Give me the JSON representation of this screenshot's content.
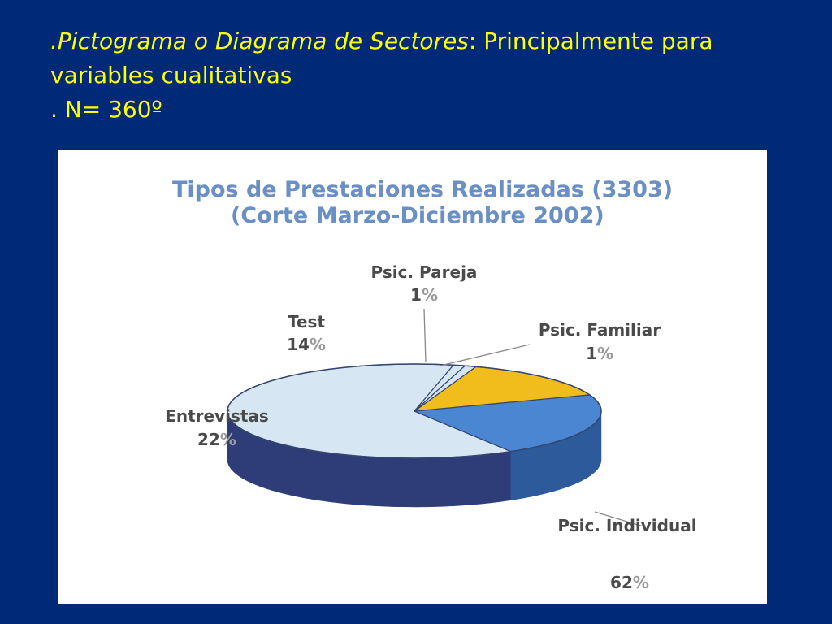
{
  "slide": {
    "heading_line1_italic": ".Pictograma o Diagrama de Sectores",
    "heading_line1_rest": ": Principalmente para",
    "heading_line2": "variables cualitativas",
    "heading_line3": ". N= 360º"
  },
  "colors": {
    "background": "#002a78",
    "heading_text": "#ffff00",
    "chart_panel": "#ffffff",
    "chart_title": "#6a8fc4",
    "label_text": "#4a4a4a"
  },
  "chart_data": {
    "type": "pie",
    "style": "3d",
    "title": "Tipos de Prestaciones Realizadas (3303)",
    "subtitle": "(Corte Marzo-Diciembre 2002)",
    "slices": [
      {
        "label": "Psic. Individual",
        "value": 62,
        "value_label": "62",
        "unit": "%",
        "color": "#d6e6f2",
        "side_color": "#2e3d78"
      },
      {
        "label": "Entrevistas",
        "value": 22,
        "value_label": "22",
        "unit": "%",
        "color": "#4a86d2",
        "side_color": "#2d5a9a"
      },
      {
        "label": "Test",
        "value": 14,
        "value_label": "14",
        "unit": "%",
        "color": "#f0bd1c",
        "side_color": "#a88410"
      },
      {
        "label": "Psic. Pareja",
        "value": 1,
        "value_label": "1",
        "unit": "%",
        "color": "#d6e6f2",
        "side_color": "#2e3d78"
      },
      {
        "label": "Psic. Familiar",
        "value": 1,
        "value_label": "1",
        "unit": "%",
        "color": "#d6e6f2",
        "side_color": "#2e3d78"
      }
    ]
  }
}
